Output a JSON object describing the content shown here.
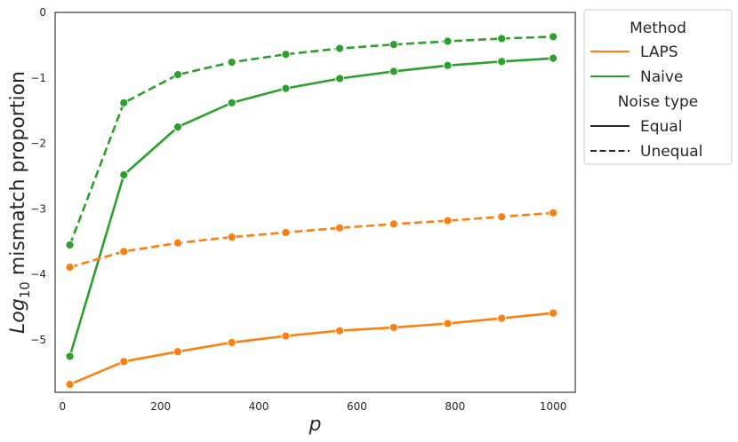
{
  "chart_data": {
    "type": "line",
    "xlabel": "p",
    "ylabel_parts": {
      "base": "Log",
      "sub": "10",
      "rest": " mismatch proportion"
    },
    "xlim": [
      -15,
      1045
    ],
    "ylim": [
      -5.8,
      0
    ],
    "xticks": [
      0,
      200,
      400,
      600,
      800,
      1000
    ],
    "xtick_labels": [
      "0",
      "200",
      "400",
      "600",
      "800",
      "1000"
    ],
    "yticks": [
      0,
      -1,
      -2,
      -3,
      -4,
      -5
    ],
    "ytick_labels": [
      "0",
      "−1",
      "−2",
      "−3",
      "−4",
      "−5"
    ],
    "grid": false,
    "legend_position": "outside-right",
    "legend": {
      "method_title": "Method",
      "noise_title": "Noise type",
      "methods": [
        {
          "label": "LAPS",
          "color": "#ff7f0e"
        },
        {
          "label": "Naive",
          "color": "#2ca02c"
        }
      ],
      "styles": [
        {
          "label": "Equal",
          "dash": "solid"
        },
        {
          "label": "Unequal",
          "dash": "dashed"
        }
      ]
    },
    "x": [
      15,
      125,
      235,
      345,
      455,
      565,
      675,
      785,
      895,
      1000
    ],
    "series": [
      {
        "method": "Naive",
        "noise": "Unequal",
        "color": "#2ca02c",
        "dash": "dashed",
        "values": [
          -3.55,
          -1.38,
          -0.95,
          -0.76,
          -0.64,
          -0.55,
          -0.49,
          -0.44,
          -0.4,
          -0.37
        ]
      },
      {
        "method": "Naive",
        "noise": "Equal",
        "color": "#2ca02c",
        "dash": "solid",
        "values": [
          -5.25,
          -2.48,
          -1.75,
          -1.38,
          -1.16,
          -1.01,
          -0.9,
          -0.81,
          -0.75,
          -0.7
        ]
      },
      {
        "method": "LAPS",
        "noise": "Unequal",
        "color": "#ff7f0e",
        "dash": "dashed",
        "values": [
          -3.89,
          -3.65,
          -3.52,
          -3.43,
          -3.36,
          -3.29,
          -3.23,
          -3.18,
          -3.12,
          -3.06
        ]
      },
      {
        "method": "LAPS",
        "noise": "Equal",
        "color": "#ff7f0e",
        "dash": "solid",
        "values": [
          -5.68,
          -5.33,
          -5.18,
          -5.04,
          -4.94,
          -4.86,
          -4.81,
          -4.75,
          -4.67,
          -4.59
        ]
      }
    ]
  }
}
